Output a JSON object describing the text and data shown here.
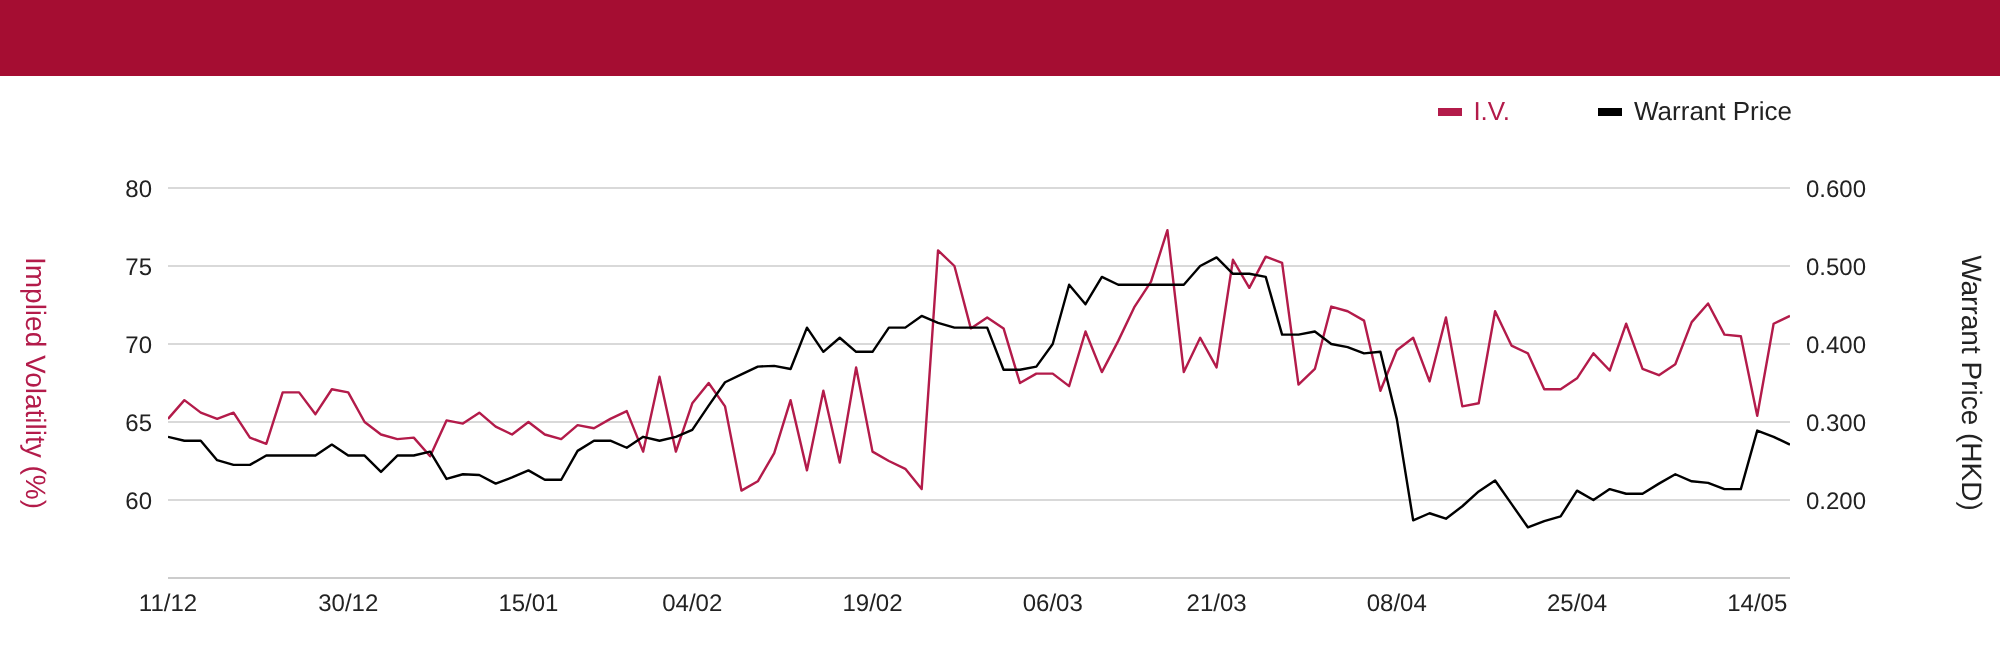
{
  "chart_data": {
    "type": "line",
    "ylabel": "Implied Volatility (%)",
    "y2label": "Warrant Price (HKD)",
    "categories": [
      "11/12",
      null,
      null,
      null,
      null,
      null,
      null,
      null,
      null,
      null,
      null,
      "30/12",
      null,
      null,
      null,
      null,
      null,
      null,
      null,
      null,
      null,
      null,
      "15/01",
      null,
      null,
      null,
      null,
      null,
      null,
      null,
      null,
      null,
      "04/02",
      null,
      null,
      null,
      null,
      null,
      null,
      null,
      null,
      null,
      null,
      "19/02",
      null,
      null,
      null,
      null,
      null,
      null,
      null,
      null,
      null,
      null,
      "06/03",
      null,
      null,
      null,
      null,
      null,
      null,
      null,
      null,
      null,
      "21/03",
      null,
      null,
      null,
      null,
      null,
      null,
      null,
      null,
      null,
      null,
      "08/04",
      null,
      null,
      null,
      null,
      null,
      null,
      null,
      null,
      null,
      null,
      "25/04",
      null,
      null,
      null,
      null,
      null,
      null,
      null,
      null,
      null,
      null,
      "14/05",
      null,
      null
    ],
    "series": [
      {
        "name": "I.V.",
        "color": "#b31b4a",
        "values": [
          65.2,
          66.4,
          65.6,
          65.2,
          65.6,
          64.0,
          63.6,
          66.9,
          66.9,
          65.5,
          67.1,
          66.9,
          65.0,
          64.2,
          63.9,
          64.0,
          62.8,
          65.1,
          64.9,
          65.6,
          64.7,
          64.2,
          65.0,
          64.2,
          63.9,
          64.8,
          64.6,
          65.2,
          65.7,
          63.1,
          67.9,
          63.1,
          66.2,
          67.5,
          66.0,
          60.6,
          61.2,
          63.0,
          66.4,
          61.9,
          67.0,
          62.4,
          68.5,
          63.1,
          62.5,
          62.0,
          60.7,
          76.0,
          75.0,
          71.0,
          71.7,
          71.0,
          67.5,
          68.1,
          68.1,
          67.3,
          70.8,
          68.2,
          70.2,
          72.4,
          74.0,
          77.3,
          68.2,
          70.4,
          68.5,
          75.4,
          73.6,
          75.6,
          75.2,
          67.4,
          68.4,
          72.4,
          72.1,
          71.5,
          67.0,
          69.6,
          70.4,
          67.6,
          71.7,
          66.0,
          66.2,
          72.1,
          69.9,
          69.4,
          67.1,
          67.1,
          67.8,
          69.4,
          68.3,
          71.3,
          68.4,
          68.0,
          68.7,
          71.4,
          72.6,
          70.6,
          70.5,
          65.4,
          71.3,
          71.8
        ]
      },
      {
        "name": "Warrant Price",
        "color": "#000000",
        "axis": "y2",
        "values": [
          0.281,
          0.276,
          0.276,
          0.251,
          0.245,
          0.245,
          0.257,
          0.257,
          0.257,
          0.257,
          0.271,
          0.257,
          0.257,
          0.236,
          0.257,
          0.257,
          0.262,
          0.227,
          0.233,
          0.232,
          0.221,
          0.229,
          0.238,
          0.226,
          0.226,
          0.263,
          0.276,
          0.276,
          0.267,
          0.281,
          0.276,
          0.281,
          0.29,
          0.321,
          0.351,
          0.361,
          0.371,
          0.372,
          0.368,
          0.421,
          0.39,
          0.408,
          0.39,
          0.39,
          0.421,
          0.421,
          0.436,
          0.427,
          0.421,
          0.421,
          0.421,
          0.367,
          0.367,
          0.371,
          0.4,
          0.476,
          0.451,
          0.486,
          0.476,
          0.476,
          0.476,
          0.476,
          0.476,
          0.5,
          0.511,
          0.49,
          0.49,
          0.486,
          0.412,
          0.412,
          0.416,
          0.4,
          0.396,
          0.388,
          0.39,
          0.304,
          0.174,
          0.183,
          0.176,
          0.192,
          0.211,
          0.225,
          0.195,
          0.165,
          0.173,
          0.179,
          0.212,
          0.2,
          0.214,
          0.208,
          0.208,
          0.221,
          0.233,
          0.224,
          0.222,
          0.214,
          0.214,
          0.289,
          0.281,
          0.271
        ]
      }
    ],
    "ylim": [
      55,
      80
    ],
    "yticks": [
      60,
      65,
      70,
      75,
      80
    ],
    "y2lim": [
      0.1,
      0.6
    ],
    "y2ticks": [
      {
        "value": 0.2,
        "label": "0.200"
      },
      {
        "value": 0.3,
        "label": "0.300"
      },
      {
        "value": 0.4,
        "label": "0.400"
      },
      {
        "value": 0.5,
        "label": "0.500"
      },
      {
        "value": 0.6,
        "label": "0.600"
      }
    ],
    "grid": "y",
    "legend": "top right",
    "marker": "none",
    "line_style": "solid"
  }
}
